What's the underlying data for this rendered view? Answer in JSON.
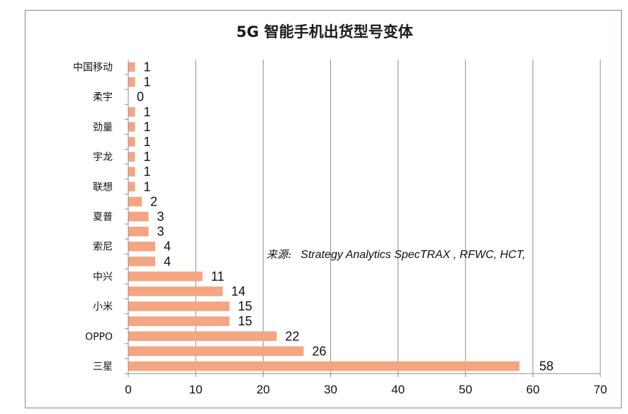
{
  "chart_data": {
    "type": "bar",
    "orientation": "horizontal",
    "title": "5G 智能手机出货型号变体",
    "categories": [
      "三星",
      "",
      "OPPO",
      "",
      "小米",
      "",
      "中兴",
      "",
      "索尼",
      "",
      "夏普",
      "",
      "联想",
      "",
      "宇龙",
      "",
      "劲量",
      "",
      "柔宇",
      "",
      "中国移动"
    ],
    "values": [
      58,
      26,
      22,
      15,
      15,
      14,
      11,
      4,
      4,
      3,
      3,
      2,
      1,
      1,
      1,
      1,
      1,
      1,
      0,
      1,
      1
    ],
    "x_ticks": [
      "0",
      "10",
      "20",
      "30",
      "40",
      "50",
      "60",
      "70"
    ],
    "xlim": [
      0,
      70
    ],
    "grid": true,
    "bar_color": "#f4a582",
    "grid_color": "#8c8c8c",
    "annotation": {
      "label": "来源:",
      "text": "Strategy Analytics SpecTRAX , RFWC, HCT,"
    }
  }
}
